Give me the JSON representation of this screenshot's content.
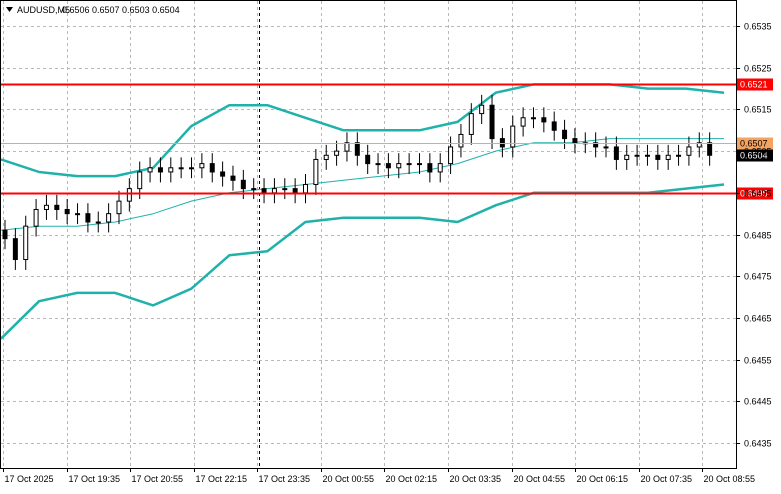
{
  "header": {
    "symbol": "AUDUSD,M5",
    "ohlc": "0.6506 0.6507 0.6503 0.6504"
  },
  "colors": {
    "background": "#ffffff",
    "grid": "#b8b8b8",
    "axis": "#000000",
    "band": "#20b2aa",
    "candle": "#000000",
    "support_resistance": "#ff0000",
    "pivot_line": "#f4a460",
    "current_price_box": "#000000"
  },
  "chart_data": {
    "type": "candlestick",
    "title": "AUDUSD,M5",
    "grid": true,
    "ylim": [
      0.6429,
      0.6541
    ],
    "y_ticks": [
      "0.6535",
      "0.6525",
      "0.6515",
      "0.6505",
      "0.6495",
      "0.6485",
      "0.6475",
      "0.6465",
      "0.6455",
      "0.6445",
      "0.6435"
    ],
    "x_ticks": [
      "17 Oct 2025",
      "17 Oct 19:35",
      "17 Oct 20:55",
      "17 Oct 22:15",
      "17 Oct 23:35",
      "20 Oct 00:55",
      "20 Oct 02:15",
      "20 Oct 03:35",
      "20 Oct 04:55",
      "20 Oct 06:15",
      "20 Oct 07:35",
      "20 Oct 08:55"
    ],
    "horizontal_levels": [
      {
        "label": "0.6521",
        "value": 0.6521,
        "style": "resistance"
      },
      {
        "label": "0.6507",
        "value": 0.6507,
        "style": "pivot"
      },
      {
        "label": "0.6504",
        "value": 0.6504,
        "style": "current"
      },
      {
        "label": "0.6495",
        "value": 0.6495,
        "style": "support"
      }
    ],
    "session_separator_index": 6,
    "closes": [
      0.6484,
      0.6479,
      0.6487,
      0.6491,
      0.6492,
      0.6491,
      0.649,
      0.649,
      0.6488,
      0.6488,
      0.649,
      0.6493,
      0.6496,
      0.65,
      0.6501,
      0.65,
      0.6501,
      0.6501,
      0.6501,
      0.6502,
      0.65,
      0.6499,
      0.6498,
      0.6496,
      0.6496,
      0.6495,
      0.6496,
      0.6496,
      0.6495,
      0.6497,
      0.6503,
      0.6504,
      0.6505,
      0.6507,
      0.6504,
      0.6502,
      0.6502,
      0.6501,
      0.6502,
      0.6502,
      0.6502,
      0.65,
      0.6502,
      0.6506,
      0.6509,
      0.6514,
      0.6516,
      0.6508,
      0.6506,
      0.6511,
      0.6513,
      0.6513,
      0.6512,
      0.651,
      0.6508,
      0.6507,
      0.6507,
      0.6506,
      0.6506,
      0.6503,
      0.6504,
      0.6504,
      0.6504,
      0.6503,
      0.6504,
      0.6504,
      0.6506,
      0.6507,
      0.6504
    ],
    "upper_band": [
      0.6503,
      0.65,
      0.6499,
      0.6499,
      0.6501,
      0.6511,
      0.6516,
      0.6516,
      0.6513,
      0.651,
      0.651,
      0.651,
      0.6512,
      0.6519,
      0.6521,
      0.6521,
      0.6521,
      0.652,
      0.652,
      0.6519
    ],
    "middle_band": [
      0.6486,
      0.6487,
      0.6487,
      0.6488,
      0.649,
      0.6493,
      0.6495,
      0.6496,
      0.6497,
      0.6498,
      0.6499,
      0.65,
      0.6502,
      0.6505,
      0.6507,
      0.6507,
      0.6508,
      0.6508,
      0.6508,
      0.6508
    ],
    "lower_band": [
      0.646,
      0.6469,
      0.6471,
      0.6471,
      0.6468,
      0.6472,
      0.648,
      0.6481,
      0.6488,
      0.6489,
      0.6489,
      0.6489,
      0.6488,
      0.6492,
      0.6495,
      0.6495,
      0.6495,
      0.6495,
      0.6496,
      0.6497
    ]
  }
}
